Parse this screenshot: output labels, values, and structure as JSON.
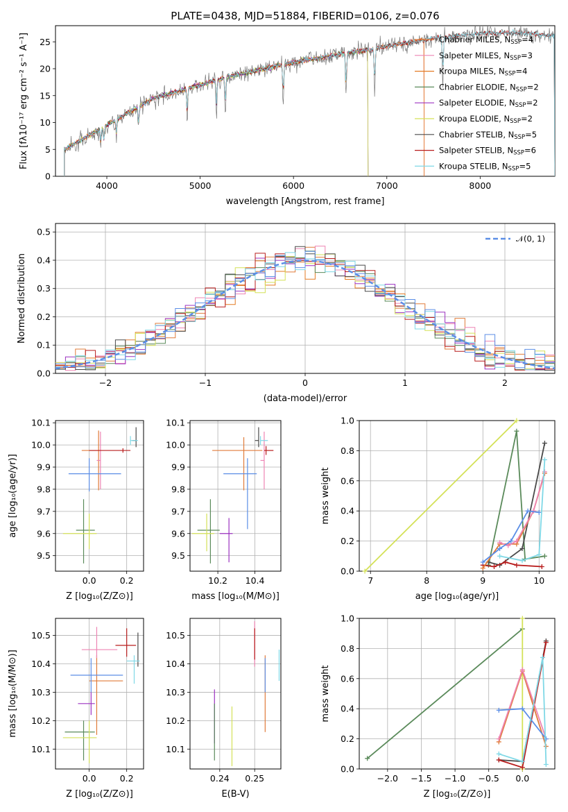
{
  "palette": [
    "#e07b39",
    "#ee84b3",
    "#e37a22",
    "#5a8a5a",
    "#9b30c0",
    "#d4e157",
    "#4a4a4a",
    "#b81c1c",
    "#7fd8e6",
    "#5b8ee6"
  ],
  "chart_data": [
    {
      "id": "spectrum",
      "type": "line",
      "title": "PLATE=0438, MJD=51884, FIBERID=0106, z=0.076",
      "xlabel": "wavelength [Angstrom, rest frame]",
      "ylabel": "Flux [fλ10⁻¹⁷ erg cm⁻² s⁻¹ A⁻¹]",
      "xlim": [
        3450,
        8800
      ],
      "ylim": [
        0,
        28
      ],
      "xticks": [
        "4000",
        "5000",
        "6000",
        "7000",
        "8000"
      ],
      "xtick_values": [
        4000,
        5000,
        6000,
        7000,
        8000
      ],
      "yticks": [
        "0",
        "5",
        "10",
        "15",
        "20",
        "25"
      ],
      "ytick_values": [
        0,
        5,
        10,
        15,
        20,
        25
      ],
      "grid": false,
      "legend_position": "upper right",
      "continuum": {
        "x": [
          3550,
          3700,
          3900,
          4100,
          4300,
          4500,
          4700,
          4900,
          5100,
          5300,
          5500,
          5700,
          5900,
          6100,
          6300,
          6500,
          6700,
          6900,
          7100,
          7300,
          7500,
          7700,
          7900,
          8100,
          8300,
          8500,
          8700
        ],
        "y": [
          5,
          6.5,
          8.5,
          10.5,
          12.5,
          14.5,
          15.5,
          16.5,
          17.5,
          18.5,
          19.2,
          20,
          20.8,
          21.5,
          22,
          22.8,
          23.2,
          23.8,
          24.5,
          25,
          25.6,
          26,
          26.4,
          26.6,
          26.7,
          26.6,
          26.2
        ]
      },
      "series": [
        {
          "name": "Chabrier MILES, N",
          "sub": "SSP",
          "eq": "=4",
          "color": "#e07b39",
          "xmax": 7400
        },
        {
          "name": "Salpeter MILES, N",
          "sub": "SSP",
          "eq": "=3",
          "color": "#ee84b3",
          "xmax": 7400
        },
        {
          "name": "Kroupa MILES, N",
          "sub": "SSP",
          "eq": "=4",
          "color": "#e37a22",
          "xmax": 7400
        },
        {
          "name": "Chabrier ELODIE, N",
          "sub": "SSP",
          "eq": "=2",
          "color": "#5a8a5a",
          "xmax": 6800
        },
        {
          "name": "Salpeter ELODIE, N",
          "sub": "SSP",
          "eq": "=2",
          "color": "#9b30c0",
          "xmax": 6800
        },
        {
          "name": "Kroupa ELODIE, N",
          "sub": "SSP",
          "eq": "=2",
          "color": "#d4e157",
          "xmax": 6800
        },
        {
          "name": "Chabrier STELIB, N",
          "sub": "SSP",
          "eq": "=5",
          "color": "#4a4a4a",
          "xmax": 8800
        },
        {
          "name": "Salpeter STELIB, N",
          "sub": "SSP",
          "eq": "=6",
          "color": "#b81c1c",
          "xmax": 8800
        },
        {
          "name": "Kroupa STELIB, N",
          "sub": "SSP",
          "eq": "=5",
          "color": "#7fd8e6",
          "xmax": 8800
        }
      ]
    },
    {
      "id": "residuals",
      "type": "histogram",
      "xlabel": "(data-model)/error",
      "ylabel": "Normed distribution",
      "xlim": [
        -2.5,
        2.5
      ],
      "ylim": [
        0,
        0.53
      ],
      "xticks": [
        "−2",
        "−1",
        "0",
        "1",
        "2"
      ],
      "xtick_values": [
        -2,
        -1,
        0,
        1,
        2
      ],
      "yticks": [
        "0.0",
        "0.1",
        "0.2",
        "0.3",
        "0.4",
        "0.5"
      ],
      "ytick_values": [
        0,
        0.1,
        0.2,
        0.3,
        0.4,
        0.5
      ],
      "grid": true,
      "legend": "𝒩(0, 1)",
      "legend_color": "#5b8ee6",
      "legend_position": "upper right",
      "bin_width": 0.1
    },
    {
      "id": "age-vs-Z",
      "type": "errorbar",
      "xlabel": "Z [log₁₀(Z/Z⊙)]",
      "ylabel": "age  [log₁₀(age/yr)]",
      "xlim": [
        -0.18,
        0.29
      ],
      "ylim": [
        9.43,
        10.11
      ],
      "xticks": [
        "0.0",
        "0.2"
      ],
      "xtick_values": [
        0,
        0.2
      ],
      "yticks": [
        "9.5",
        "9.6",
        "9.7",
        "9.8",
        "9.9",
        "10.0",
        "10.1"
      ],
      "ytick_values": [
        9.5,
        9.6,
        9.7,
        9.8,
        9.9,
        10.0,
        10.1
      ],
      "points": [
        {
          "x": 0.05,
          "xe": [
            0.09,
            0.0
          ],
          "y": 9.975,
          "ye": [
            0.18,
            0.09
          ],
          "c": "#e07b39"
        },
        {
          "x": 0.06,
          "xe": [
            0.02,
            0.0
          ],
          "y": 9.93,
          "ye": [
            0.13,
            0.13
          ],
          "c": "#ee84b3"
        },
        {
          "x": 0.18,
          "xe": [
            0.18,
            0.04
          ],
          "y": 9.975,
          "ye": [
            0.01,
            0.01
          ],
          "c": "#b81c1c"
        },
        {
          "x": 0.0,
          "xe": [
            0.11,
            0.17
          ],
          "y": 9.87,
          "ye": [
            0.08,
            0.07
          ],
          "c": "#5b8ee6"
        },
        {
          "x": 0.25,
          "xe": [
            0.02,
            0.0
          ],
          "y": 10.02,
          "ye": [
            0.03,
            0.06
          ],
          "c": "#4a4a4a"
        },
        {
          "x": 0.22,
          "xe": [
            0.0,
            0.04
          ],
          "y": 10.02,
          "ye": [
            0.02,
            0.02
          ],
          "c": "#7fd8e6"
        },
        {
          "x": -0.03,
          "xe": [
            0.04,
            0.06
          ],
          "y": 9.615,
          "ye": [
            0.15,
            0.14
          ],
          "c": "#5a8a5a"
        },
        {
          "x": 0.0,
          "xe": [
            0.14,
            0.04
          ],
          "y": 9.6,
          "ye": [
            0.07,
            0.09
          ],
          "c": "#d4e157"
        }
      ]
    },
    {
      "id": "age-vs-mass",
      "type": "errorbar",
      "xlabel": "mass [log₁₀(M/M⊙)]",
      "ylabel": "",
      "xlim": [
        10.05,
        10.54
      ],
      "ylim": [
        9.43,
        10.11
      ],
      "xticks": [
        "10.2",
        "10.4"
      ],
      "xtick_values": [
        10.2,
        10.4
      ],
      "yticks": [
        "9.5",
        "9.6",
        "9.7",
        "9.8",
        "9.9",
        "10.0",
        "10.1"
      ],
      "ytick_values": [
        9.5,
        9.6,
        9.7,
        9.8,
        9.9,
        10.0,
        10.1
      ],
      "points": [
        {
          "x": 10.34,
          "xe": [
            0.17,
            0.1
          ],
          "y": 9.975,
          "ye": [
            0.18,
            0.06
          ],
          "c": "#e07b39"
        },
        {
          "x": 10.45,
          "xe": [
            0.02,
            0.0
          ],
          "y": 9.93,
          "ye": [
            0.13,
            0.13
          ],
          "c": "#ee84b3"
        },
        {
          "x": 10.46,
          "xe": [
            0.01,
            0.04
          ],
          "y": 9.975,
          "ye": [
            0.02,
            0.02
          ],
          "c": "#b81c1c"
        },
        {
          "x": 10.36,
          "xe": [
            0.13,
            0.05
          ],
          "y": 9.87,
          "ye": [
            0.25,
            0.07
          ],
          "c": "#5b8ee6"
        },
        {
          "x": 10.42,
          "xe": [
            0.02,
            0.0
          ],
          "y": 10.02,
          "ye": [
            0.03,
            0.06
          ],
          "c": "#4a4a4a"
        },
        {
          "x": 10.43,
          "xe": [
            0.0,
            0.04
          ],
          "y": 10.02,
          "ye": [
            0.02,
            0.02
          ],
          "c": "#7fd8e6"
        },
        {
          "x": 10.16,
          "xe": [
            0.07,
            0.05
          ],
          "y": 9.615,
          "ye": [
            0.15,
            0.14
          ],
          "c": "#5a8a5a"
        },
        {
          "x": 10.14,
          "xe": [
            0.08,
            0.04
          ],
          "y": 9.6,
          "ye": [
            0.08,
            0.09
          ],
          "c": "#d4e157"
        },
        {
          "x": 10.26,
          "xe": [
            0.05,
            0.02
          ],
          "y": 9.6,
          "ye": [
            0.13,
            0.07
          ],
          "c": "#9b30c0"
        }
      ]
    },
    {
      "id": "massweight-vs-age",
      "type": "line",
      "xlabel": "age  [log₁₀(age/yr)]",
      "ylabel": "mass weight",
      "xlim": [
        6.8,
        10.28
      ],
      "ylim": [
        0,
        1.0
      ],
      "xticks": [
        "7",
        "8",
        "9",
        "10"
      ],
      "xtick_values": [
        7,
        8,
        9,
        10
      ],
      "yticks": [
        "0.0",
        "0.2",
        "0.4",
        "0.6",
        "0.8",
        "1.0"
      ],
      "ytick_values": [
        0,
        0.2,
        0.4,
        0.6,
        0.8,
        1.0
      ],
      "grid": true,
      "series": [
        {
          "c": "#d4e157",
          "x": [
            6.9,
            9.6
          ],
          "y": [
            0.0,
            1.0
          ]
        },
        {
          "c": "#5a8a5a",
          "x": [
            9.1,
            9.6,
            9.75,
            10.1
          ],
          "y": [
            0.04,
            0.93,
            0.08,
            0.1
          ]
        },
        {
          "c": "#4a4a4a",
          "x": [
            9.1,
            9.3,
            9.7,
            10.1
          ],
          "y": [
            0.06,
            0.04,
            0.15,
            0.85
          ]
        },
        {
          "c": "#b81c1c",
          "x": [
            9.0,
            9.2,
            9.4,
            9.6,
            10.05
          ],
          "y": [
            0.04,
            0.03,
            0.06,
            0.04,
            0.03
          ]
        },
        {
          "c": "#e07b39",
          "x": [
            9.0,
            9.3,
            9.6,
            9.9,
            10.1
          ],
          "y": [
            0.02,
            0.18,
            0.18,
            0.4,
            0.65
          ]
        },
        {
          "c": "#ee84b3",
          "x": [
            9.3,
            9.45,
            9.6,
            9.9,
            10.1
          ],
          "y": [
            0.19,
            0.17,
            0.2,
            0.4,
            0.66
          ]
        },
        {
          "c": "#5b8ee6",
          "x": [
            9.0,
            9.3,
            9.5,
            9.8,
            10.0
          ],
          "y": [
            0.06,
            0.15,
            0.2,
            0.4,
            0.39
          ]
        },
        {
          "c": "#7fd8e6",
          "x": [
            9.3,
            9.7,
            10.0,
            10.1
          ],
          "y": [
            0.1,
            0.07,
            0.11,
            0.74
          ]
        }
      ]
    },
    {
      "id": "mass-vs-Z",
      "type": "errorbar",
      "xlabel": "Z [log₁₀(Z/Z⊙)]",
      "ylabel": "mass [log₁₀(M/M⊙)]",
      "xlim": [
        -0.18,
        0.29
      ],
      "ylim": [
        10.03,
        10.56
      ],
      "xticks": [
        "0.0",
        "0.2"
      ],
      "xtick_values": [
        0,
        0.2
      ],
      "yticks": [
        "10.1",
        "10.2",
        "10.3",
        "10.4",
        "10.5"
      ],
      "ytick_values": [
        10.1,
        10.2,
        10.3,
        10.4,
        10.5
      ],
      "points": [
        {
          "x": 0.04,
          "xe": [
            0.04,
            0.14
          ],
          "y": 10.34,
          "ye": [
            0.19,
            0.09
          ],
          "c": "#e07b39"
        },
        {
          "x": 0.04,
          "xe": [
            0.08,
            0.11
          ],
          "y": 10.45,
          "ye": [
            0.03,
            0.08
          ],
          "c": "#ee84b3"
        },
        {
          "x": 0.2,
          "xe": [
            0.06,
            0.05
          ],
          "y": 10.465,
          "ye": [
            0.04,
            0.06
          ],
          "c": "#b81c1c"
        },
        {
          "x": 0.01,
          "xe": [
            0.11,
            0.17
          ],
          "y": 10.36,
          "ye": [
            0.06,
            0.06
          ],
          "c": "#5b8ee6"
        },
        {
          "x": 0.26,
          "xe": [
            0.0,
            0.0
          ],
          "y": 10.45,
          "ye": [
            0.06,
            0.06
          ],
          "c": "#4a4a4a"
        },
        {
          "x": 0.24,
          "xe": [
            0.04,
            0.03
          ],
          "y": 10.41,
          "ye": [
            0.08,
            0.02
          ],
          "c": "#7fd8e6"
        },
        {
          "x": -0.03,
          "xe": [
            0.1,
            0.06
          ],
          "y": 10.16,
          "ye": [
            0.1,
            0.04
          ],
          "c": "#5a8a5a"
        },
        {
          "x": 0.0,
          "xe": [
            0.14,
            0.04
          ],
          "y": 10.14,
          "ye": [
            0.09,
            0.06
          ],
          "c": "#d4e157"
        },
        {
          "x": 0.01,
          "xe": [
            0.07,
            0.02
          ],
          "y": 10.26,
          "ye": [
            0.04,
            0.04
          ],
          "c": "#9b30c0"
        }
      ]
    },
    {
      "id": "mass-vs-EBV",
      "type": "errorbar",
      "xlabel": "E(B-V)",
      "ylabel": "",
      "xlim": [
        0.2315,
        0.2575
      ],
      "ylim": [
        10.03,
        10.56
      ],
      "xticks": [
        "0.24",
        "0.25"
      ],
      "xtick_values": [
        0.24,
        0.25
      ],
      "yticks": [
        "10.1",
        "10.2",
        "10.3",
        "10.4",
        "10.5"
      ],
      "ytick_values": [
        10.1,
        10.2,
        10.3,
        10.4,
        10.5
      ],
      "points": [
        {
          "x": 0.2385,
          "y": 10.2,
          "ye": [
            0.08,
            0.11
          ],
          "c": "#9b30c0"
        },
        {
          "x": 0.2385,
          "y": 10.16,
          "ye": [
            0.1,
            0.1
          ],
          "c": "#5a8a5a"
        },
        {
          "x": 0.2435,
          "y": 10.14,
          "ye": [
            0.1,
            0.11
          ],
          "c": "#d4e157"
        },
        {
          "x": 0.25,
          "y": 10.45,
          "ye": [
            0.06,
            0.1
          ],
          "c": "#ee84b3"
        },
        {
          "x": 0.25,
          "y": 10.465,
          "ye": [
            0.05,
            0.06
          ],
          "c": "#b81c1c"
        },
        {
          "x": 0.253,
          "y": 10.34,
          "ye": [
            0.18,
            0.09
          ],
          "c": "#e07b39"
        },
        {
          "x": 0.253,
          "y": 10.36,
          "ye": [
            0.06,
            0.06
          ],
          "c": "#5b8ee6"
        },
        {
          "x": 0.257,
          "y": 10.41,
          "ye": [
            0.07,
            0.04
          ],
          "c": "#7fd8e6"
        }
      ]
    },
    {
      "id": "massweight-vs-Z",
      "type": "line",
      "xlabel": "Z [log₁₀(Z/Z⊙)]",
      "ylabel": "mass weight",
      "xlim": [
        -2.42,
        0.48
      ],
      "ylim": [
        0,
        1.0
      ],
      "xticks": [
        "−2.0",
        "−1.5",
        "−1.0",
        "−0.5",
        "0.0"
      ],
      "xtick_values": [
        -2.0,
        -1.5,
        -1.0,
        -0.5,
        0.0
      ],
      "yticks": [
        "0.0",
        "0.2",
        "0.4",
        "0.6",
        "0.8",
        "1.0"
      ],
      "ytick_values": [
        0,
        0.2,
        0.4,
        0.6,
        0.8,
        1.0
      ],
      "grid": true,
      "series": [
        {
          "c": "#5a8a5a",
          "x": [
            -2.3,
            0.0
          ],
          "y": [
            0.07,
            0.93
          ]
        },
        {
          "c": "#d4e157",
          "x": [
            0.0,
            0.0
          ],
          "y": [
            0.0,
            1.0
          ]
        },
        {
          "c": "#4a4a4a",
          "x": [
            -0.35,
            0.0,
            0.35
          ],
          "y": [
            0.06,
            0.05,
            0.85
          ]
        },
        {
          "c": "#b81c1c",
          "x": [
            -0.35,
            0.0,
            0.35
          ],
          "y": [
            0.06,
            0.01,
            0.84
          ]
        },
        {
          "c": "#e07b39",
          "x": [
            -0.35,
            0.0,
            0.35
          ],
          "y": [
            0.18,
            0.65,
            0.15
          ]
        },
        {
          "c": "#ee84b3",
          "x": [
            -0.35,
            0.0,
            0.35
          ],
          "y": [
            0.2,
            0.66,
            0.2
          ]
        },
        {
          "c": "#5b8ee6",
          "x": [
            -0.35,
            0.0,
            0.35
          ],
          "y": [
            0.39,
            0.4,
            0.2
          ]
        },
        {
          "c": "#7fd8e6",
          "x": [
            -0.35,
            0.0,
            0.3,
            0.35
          ],
          "y": [
            0.1,
            0.05,
            0.74,
            0.03
          ]
        }
      ]
    }
  ]
}
